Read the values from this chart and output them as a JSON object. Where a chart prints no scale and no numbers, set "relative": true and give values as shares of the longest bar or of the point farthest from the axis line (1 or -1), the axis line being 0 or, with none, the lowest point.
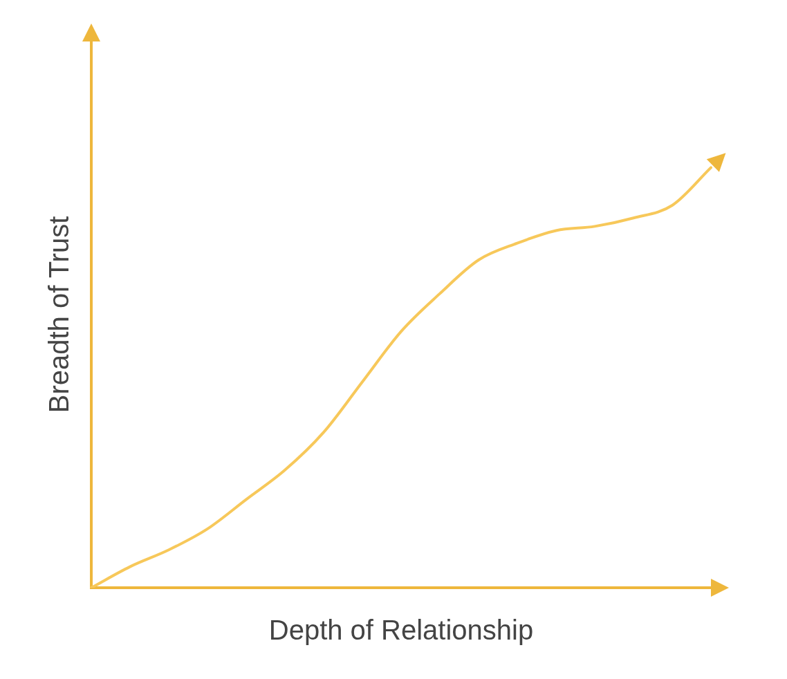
{
  "chart_data": {
    "type": "line",
    "xlabel": "Depth of Relationship",
    "ylabel": "Breadth of Trust",
    "relative": true,
    "tick_labels": false,
    "grid": false,
    "legend": false,
    "marker": "none",
    "categories": [
      null,
      null,
      null,
      null,
      null,
      null,
      null,
      null,
      null,
      null,
      null,
      null,
      null,
      null,
      null,
      null,
      null
    ],
    "series": [
      {
        "color": "#f7c85a",
        "values": [
          0,
          0.05,
          0.09,
          0.14,
          0.21,
          0.28,
          0.37,
          0.49,
          0.61,
          0.7,
          0.78,
          0.82,
          0.85,
          0.86,
          0.88,
          0.91,
          1
        ]
      }
    ]
  }
}
